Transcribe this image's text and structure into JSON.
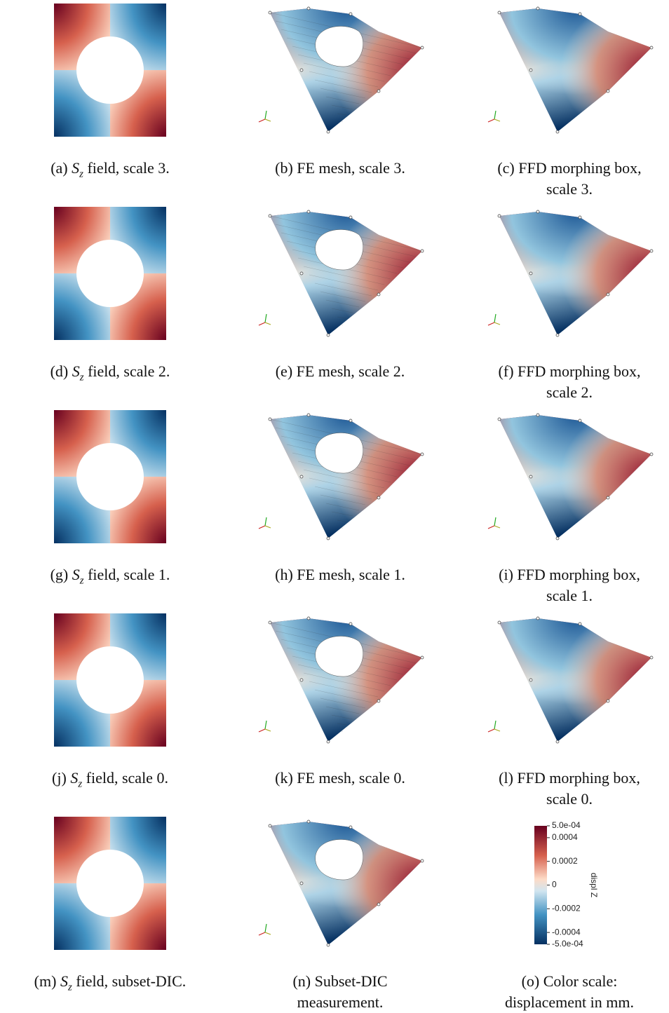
{
  "panels": [
    {
      "caption": {
        "label": "(a)",
        "symbol": "S",
        "subscript": "z",
        "lines": [
          "field, scale 3."
        ]
      }
    },
    {
      "caption": {
        "label": "(b)",
        "lines": [
          "FE mesh, scale 3."
        ]
      }
    },
    {
      "caption": {
        "label": "(c)",
        "lines": [
          "FFD morphing box,",
          "scale 3."
        ]
      }
    },
    {
      "caption": {
        "label": "(d)",
        "symbol": "S",
        "subscript": "z",
        "lines": [
          "field, scale 2."
        ]
      }
    },
    {
      "caption": {
        "label": "(e)",
        "lines": [
          "FE mesh, scale 2."
        ]
      }
    },
    {
      "caption": {
        "label": "(f)",
        "lines": [
          "FFD morphing box,",
          "scale 2."
        ]
      }
    },
    {
      "caption": {
        "label": "(g)",
        "symbol": "S",
        "subscript": "z",
        "lines": [
          "field, scale 1."
        ]
      }
    },
    {
      "caption": {
        "label": "(h)",
        "lines": [
          "FE mesh, scale 1."
        ]
      }
    },
    {
      "caption": {
        "label": "(i)",
        "lines": [
          "FFD morphing box,",
          "scale 1."
        ]
      }
    },
    {
      "caption": {
        "label": "(j)",
        "symbol": "S",
        "subscript": "z",
        "lines": [
          "field, scale 0."
        ]
      }
    },
    {
      "caption": {
        "label": "(k)",
        "lines": [
          "FE mesh, scale 0."
        ]
      }
    },
    {
      "caption": {
        "label": "(l)",
        "lines": [
          "FFD morphing box,",
          "scale 0."
        ]
      }
    },
    {
      "caption": {
        "label": "(m)",
        "symbol": "S",
        "subscript": "z",
        "lines": [
          "field, subset-DIC."
        ]
      }
    },
    {
      "caption": {
        "label": "(n)",
        "lines": [
          "Subset-DIC",
          "measurement."
        ]
      }
    },
    {
      "caption": {
        "label": "(o)",
        "lines": [
          "Color scale:",
          "displacement in mm."
        ]
      }
    }
  ],
  "colorbar": {
    "title": "displ Z",
    "range": [
      -0.0005,
      0.0005
    ],
    "ticks": [
      {
        "value": 0.0005,
        "label": "5.0e-04"
      },
      0.0004,
      0.0002,
      0,
      -0.0002,
      -0.0004,
      {
        "value": -0.0005,
        "label": "-5.0e-04"
      }
    ]
  }
}
